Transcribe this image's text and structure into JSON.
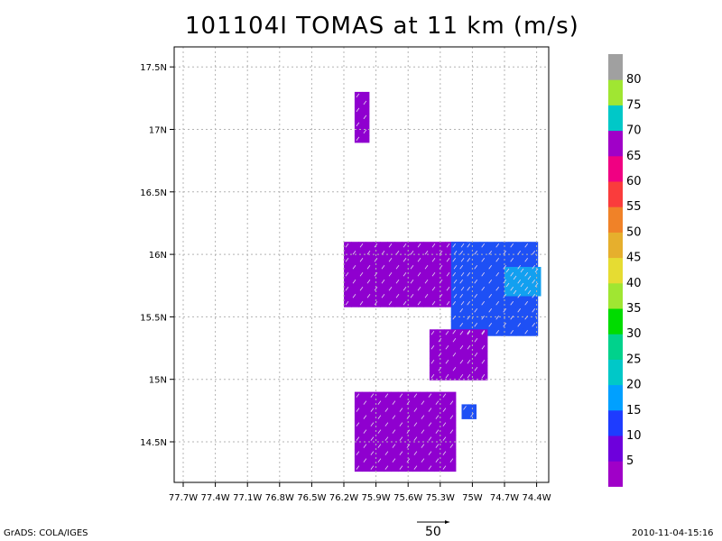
{
  "chart_data": {
    "type": "heatmap",
    "title": "101104I TOMAS at 11 km (m/s)",
    "x_ticks": [
      "77.7W",
      "77.4W",
      "77.1W",
      "76.8W",
      "76.5W",
      "76.2W",
      "75.9W",
      "75.6W",
      "75.3W",
      "75W",
      "74.7W",
      "74.4W"
    ],
    "y_ticks": [
      "14.5N",
      "15N",
      "15.5N",
      "16N",
      "16.5N",
      "17N",
      "17.5N"
    ],
    "xlim": [
      -77.8,
      -74.35
    ],
    "ylim": [
      14.08,
      17.55
    ],
    "colorbar_labels": [
      "5",
      "10",
      "15",
      "20",
      "25",
      "30",
      "35",
      "40",
      "45",
      "50",
      "55",
      "60",
      "65",
      "70",
      "75",
      "80"
    ],
    "colorbar_colors": [
      "#a000c8",
      "#6e00dc",
      "#1e3cff",
      "#00a0ff",
      "#00c8c8",
      "#00d28c",
      "#00dc00",
      "#a0e632",
      "#e6dc32",
      "#e6af2d",
      "#f08228",
      "#fa3c3c",
      "#f00082",
      "#a000c8",
      "#00c8c8",
      "#a0e632",
      "#a0a0a0"
    ],
    "regions": [
      {
        "speed_class": "5-10",
        "lon": [
          -76.1,
          -76.0
        ],
        "lat": [
          16.9,
          17.3
        ]
      },
      {
        "speed_class": "5-10",
        "lon": [
          -76.2,
          -75.1
        ],
        "lat": [
          15.6,
          16.1
        ]
      },
      {
        "speed_class": "10-15",
        "lon": [
          -75.2,
          -74.4
        ],
        "lat": [
          15.4,
          16.1
        ]
      },
      {
        "speed_class": "15-20",
        "lon": [
          -74.7,
          -74.4
        ],
        "lat": [
          15.7,
          15.9
        ]
      },
      {
        "speed_class": "5-10",
        "lon": [
          -75.4,
          -74.9
        ],
        "lat": [
          15.0,
          15.4
        ]
      },
      {
        "speed_class": "5-10",
        "lon": [
          -76.1,
          -75.2
        ],
        "lat": [
          14.3,
          14.9
        ]
      },
      {
        "speed_class": "10-15",
        "lon": [
          -75.1,
          -75.0
        ],
        "lat": [
          14.7,
          14.8
        ]
      }
    ],
    "reference_vector": "50"
  },
  "footer": {
    "left": "GrADS: COLA/IGES",
    "right": "2010-11-04-15:16"
  }
}
